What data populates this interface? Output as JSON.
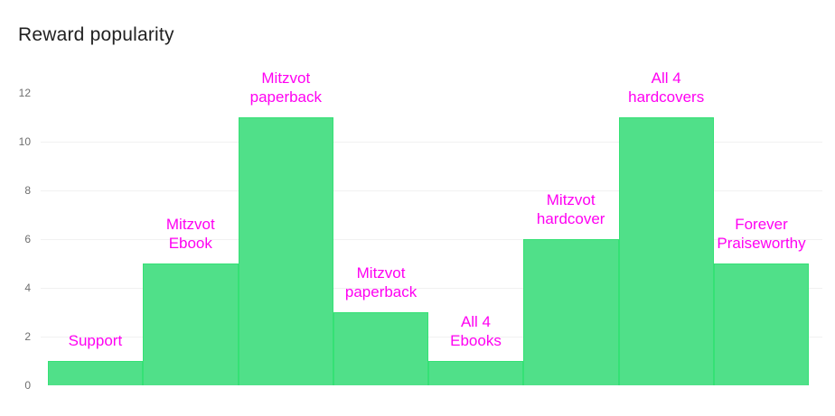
{
  "header": {
    "title": "Reward popularity"
  },
  "chart_data": {
    "type": "bar",
    "title": "Reward popularity",
    "categories": [
      "Support",
      "Mitzvot Ebook",
      "Mitzvot paperback",
      "Mitzvot paperback",
      "All 4 Ebooks",
      "Mitzvot hardcover",
      "All 4 hardcovers",
      "Forever Praiseworthy"
    ],
    "values": [
      1,
      5,
      11,
      3,
      1,
      6,
      11,
      5
    ],
    "bar_label_lines": [
      [
        "Support"
      ],
      [
        "Mitzvot",
        "Ebook"
      ],
      [
        "Mitzvot",
        "paperback"
      ],
      [
        "Mitzvot",
        "paperback"
      ],
      [
        "All 4",
        "Ebooks"
      ],
      [
        "Mitzvot",
        "hardcover"
      ],
      [
        "All 4",
        "hardcovers"
      ],
      [
        "Forever",
        "Praiseworthy"
      ]
    ],
    "xlabel": "",
    "ylabel": "",
    "ylim": [
      0,
      12
    ],
    "yticks": [
      0,
      2,
      4,
      6,
      8,
      10,
      12
    ],
    "gridline_values": [
      2,
      4,
      6,
      8,
      10
    ],
    "grid": "horizontal",
    "legend": "none",
    "colors": {
      "bar_fill": "#50e089",
      "bar_border": "#35e175",
      "bar_label": "#ff00f2",
      "title": "#212121",
      "tick": "#6e6e6e",
      "gridline": "#f1f1f1",
      "background": "#ffffff"
    }
  }
}
